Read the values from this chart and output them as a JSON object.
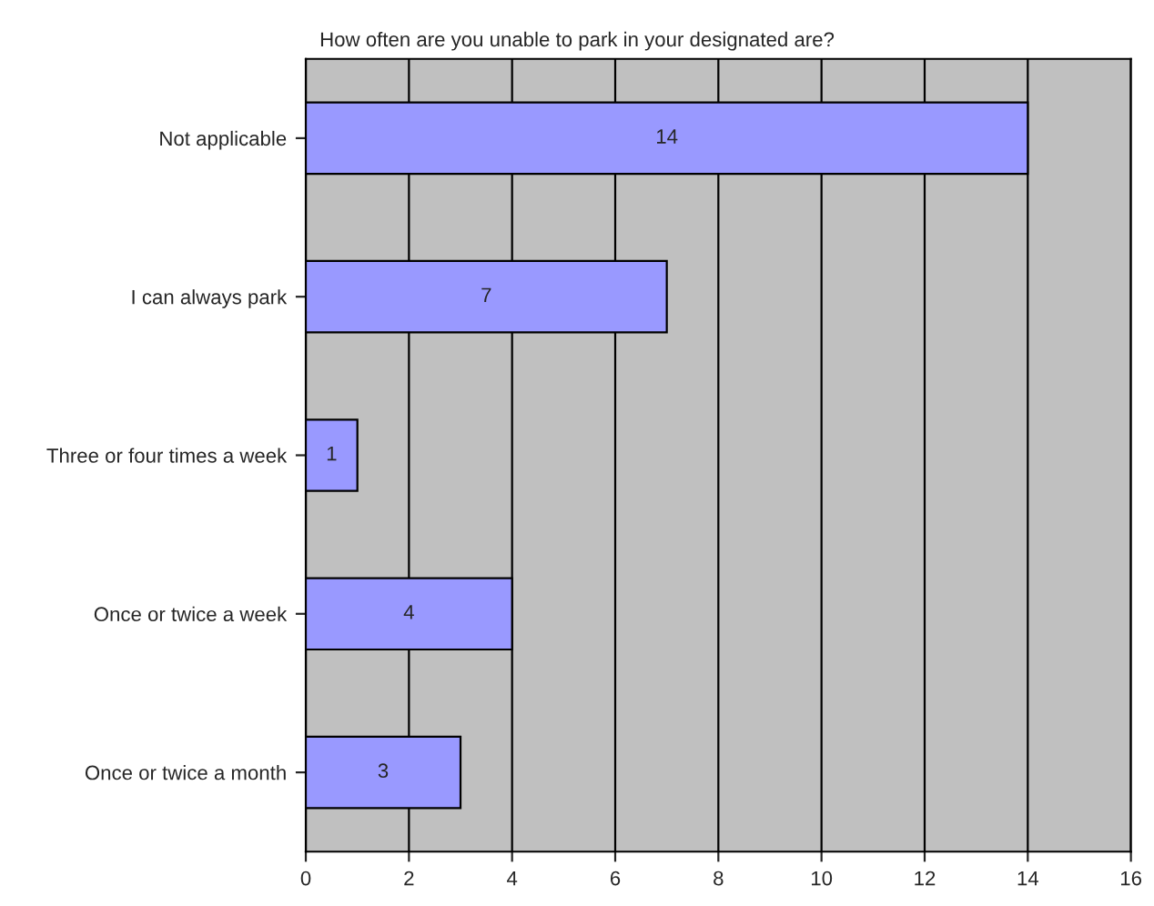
{
  "chart_data": {
    "type": "bar",
    "orientation": "horizontal",
    "title": "How often are you unable to park in your designated are?",
    "categories": [
      "Not applicable",
      "I can always park",
      "Three or four times a week",
      "Once or twice a week",
      "Once or twice a month"
    ],
    "values": [
      14,
      7,
      1,
      4,
      3
    ],
    "color": "#9999ff",
    "data_labels": true,
    "xlim": [
      0,
      16
    ],
    "xticks": [
      0,
      2,
      4,
      6,
      8,
      10,
      12,
      14,
      16
    ],
    "grid": "x",
    "legend": false
  }
}
